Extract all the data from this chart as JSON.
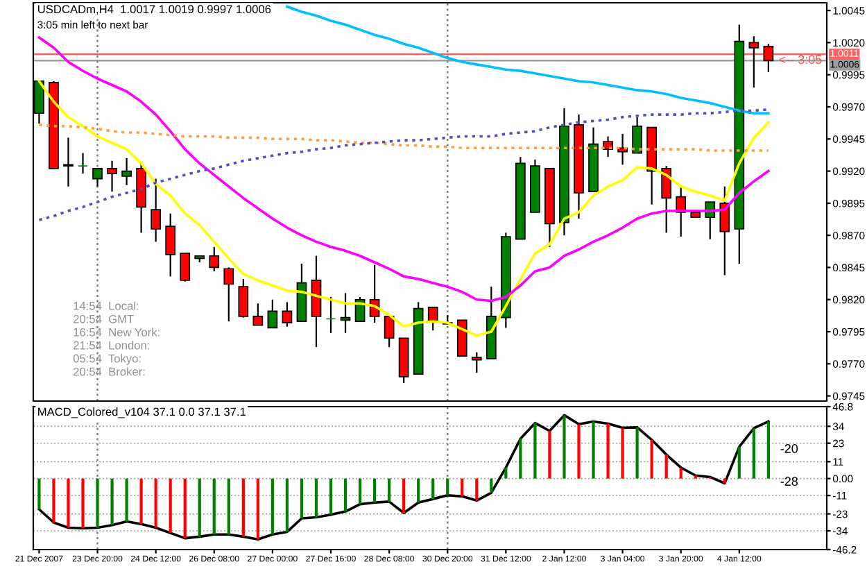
{
  "chart_data": [
    {
      "type": "candlestick",
      "title": "USDCADm,H4  1.0017 1.0019 0.9997 1.0006",
      "categories": [
        "21 Dec 2007",
        null,
        null,
        null,
        "23 Dec 20:00",
        null,
        null,
        null,
        "24 Dec 12:00",
        null,
        null,
        null,
        "26 Dec 08:00",
        null,
        null,
        null,
        "27 Dec 00:00",
        null,
        null,
        null,
        "27 Dec 16:00",
        null,
        null,
        null,
        "28 Dec 08:00",
        null,
        null,
        null,
        "30 Dec 20:00",
        null,
        null,
        null,
        "31 Dec 12:00",
        null,
        null,
        null,
        "2 Jan 12:00",
        null,
        null,
        null,
        "3 Jan 04:00",
        null,
        null,
        null,
        "3 Jan 20:00",
        null,
        null,
        null,
        "4 Jan 12:00",
        null,
        null
      ],
      "ohlc": [
        [
          0.9965,
          0.9991,
          0.9957,
          0.999
        ],
        [
          0.9989,
          0.999,
          0.9922,
          0.9922
        ],
        [
          0.9924,
          0.9946,
          0.9908,
          0.9925
        ],
        [
          0.9924,
          0.9934,
          0.9918,
          0.9924
        ],
        [
          0.9914,
          0.9922,
          0.9908,
          0.9922
        ],
        [
          0.9922,
          0.9928,
          0.9904,
          0.9918
        ],
        [
          0.9916,
          0.993,
          0.9909,
          0.992
        ],
        [
          0.9922,
          0.9926,
          0.9872,
          0.9892
        ],
        [
          0.989,
          0.9914,
          0.9865,
          0.9875
        ],
        [
          0.9877,
          0.9887,
          0.9838,
          0.9855
        ],
        [
          0.9856,
          0.9856,
          0.9834,
          0.9835
        ],
        [
          0.9852,
          0.9854,
          0.9849,
          0.9854
        ],
        [
          0.9854,
          0.9861,
          0.9842,
          0.9845
        ],
        [
          0.9844,
          0.9845,
          0.9803,
          0.9832
        ],
        [
          0.983,
          0.9836,
          0.9806,
          0.9807
        ],
        [
          0.9807,
          0.9817,
          0.98,
          0.98
        ],
        [
          0.9798,
          0.982,
          0.9798,
          0.9811
        ],
        [
          0.9811,
          0.9818,
          0.9799,
          0.9802
        ],
        [
          0.9803,
          0.9848,
          0.9803,
          0.9833
        ],
        [
          0.9835,
          0.9854,
          0.9783,
          0.9807
        ],
        [
          0.9805,
          0.9822,
          0.9794,
          0.9805
        ],
        [
          0.9804,
          0.9825,
          0.9794,
          0.9806
        ],
        [
          0.9803,
          0.9822,
          0.9803,
          0.982
        ],
        [
          0.982,
          0.9847,
          0.9802,
          0.9807
        ],
        [
          0.9807,
          0.9807,
          0.9783,
          0.979
        ],
        [
          0.979,
          0.979,
          0.9755,
          0.976
        ],
        [
          0.9762,
          0.9818,
          0.9762,
          0.9813
        ],
        [
          0.9814,
          0.9814,
          0.9796,
          0.9803
        ],
        [
          0.9801,
          0.9808,
          0.9801,
          0.9802
        ],
        [
          0.9804,
          0.9804,
          0.9776,
          0.9776
        ],
        [
          0.9775,
          0.9779,
          0.9763,
          0.9773
        ],
        [
          0.9774,
          0.983,
          0.9774,
          0.9807
        ],
        [
          0.9806,
          0.9872,
          0.9798,
          0.9869
        ],
        [
          0.9867,
          0.9931,
          0.9867,
          0.9926
        ],
        [
          0.9888,
          0.9929,
          0.9888,
          0.9924
        ],
        [
          0.9922,
          0.9922,
          0.9861,
          0.9879
        ],
        [
          0.988,
          0.9969,
          0.987,
          0.9955
        ],
        [
          0.9956,
          0.9964,
          0.9883,
          0.9903
        ],
        [
          0.9904,
          0.9954,
          0.9904,
          0.9941
        ],
        [
          0.9943,
          0.9947,
          0.9931,
          0.9937
        ],
        [
          0.9938,
          0.9949,
          0.9925,
          0.9935
        ],
        [
          0.9934,
          0.9962,
          0.9934,
          0.9955
        ],
        [
          0.9954,
          0.9954,
          0.9894,
          0.992
        ],
        [
          0.9922,
          0.9924,
          0.9872,
          0.9899
        ],
        [
          0.99,
          0.9909,
          0.9869,
          0.9888
        ],
        [
          0.9888,
          0.9888,
          0.9884,
          0.9884
        ],
        [
          0.9884,
          0.9896,
          0.9867,
          0.9896
        ],
        [
          0.9895,
          0.9908,
          0.9839,
          0.9873
        ],
        [
          0.9875,
          1.0034,
          0.9848,
          1.0021
        ],
        [
          1.002,
          1.0025,
          0.9985,
          1.0016
        ],
        [
          1.0017,
          1.0019,
          0.9997,
          1.0006
        ]
      ],
      "colors": [
        "#008000",
        "#ff0000",
        "#008000",
        "#008000",
        "#008000",
        "#ff0000",
        "#008000",
        "#ff0000",
        "#ff0000",
        "#ff0000",
        "#ff0000",
        "#008000",
        "#ff0000",
        "#ff0000",
        "#ff0000",
        "#ff0000",
        "#008000",
        "#ff0000",
        "#008000",
        "#ff0000",
        "#008000",
        "#008000",
        "#008000",
        "#ff0000",
        "#ff0000",
        "#ff0000",
        "#008000",
        "#ff0000",
        "#008000",
        "#ff0000",
        "#ff0000",
        "#008000",
        "#008000",
        "#008000",
        "#008000",
        "#ff0000",
        "#008000",
        "#ff0000",
        "#008000",
        "#ff0000",
        "#ff0000",
        "#008000",
        "#ff0000",
        "#ff0000",
        "#ff0000",
        "#ff0000",
        "#008000",
        "#ff0000",
        "#008000",
        "#ff0000",
        "#ff0000"
      ],
      "series": [
        {
          "type": "line",
          "color": "#ffff00",
          "line_style": "solid",
          "values": [
            0.999,
            0.9974,
            0.9962,
            0.9955,
            0.9947,
            0.9942,
            0.9937,
            0.9926,
            0.991,
            0.9901,
            0.9887,
            0.9878,
            0.9865,
            0.9852,
            0.984,
            0.9835,
            0.9831,
            0.9827,
            0.9826,
            0.9823,
            0.982,
            0.9817,
            0.9817,
            0.9815,
            0.9808,
            0.9799,
            0.9802,
            0.9803,
            0.9802,
            0.9797,
            0.9792,
            0.9795,
            0.9815,
            0.9836,
            0.9856,
            0.9863,
            0.9883,
            0.9888,
            0.9901,
            0.9908,
            0.9913,
            0.9923,
            0.9922,
            0.9917,
            0.9908,
            0.9904,
            0.9901,
            0.9897,
            0.9926,
            0.9946,
            0.9958
          ]
        },
        {
          "type": "line",
          "color": "#ff00ff",
          "line_style": "solid",
          "values": [
            1.0024,
            1.0016,
            1.0005,
            0.9998,
            0.9992,
            0.9987,
            0.9982,
            0.9974,
            0.9964,
            0.9951,
            0.9937,
            0.9926,
            0.9917,
            0.9908,
            0.9899,
            0.9891,
            0.9883,
            0.9876,
            0.987,
            0.9865,
            0.9861,
            0.9858,
            0.9854,
            0.9849,
            0.9844,
            0.9838,
            0.9836,
            0.9833,
            0.983,
            0.9826,
            0.982,
            0.9819,
            0.9822,
            0.9831,
            0.9842,
            0.9845,
            0.9854,
            0.9859,
            0.9865,
            0.987,
            0.9876,
            0.9883,
            0.9887,
            0.9889,
            0.9889,
            0.9889,
            0.9889,
            0.989,
            0.9903,
            0.9912,
            0.992
          ]
        },
        {
          "type": "line",
          "color": "#00bfff",
          "line_style": "solid",
          "values": [
            null,
            null,
            null,
            null,
            null,
            null,
            null,
            null,
            null,
            null,
            null,
            null,
            null,
            null,
            null,
            null,
            null,
            1.0048,
            1.0044,
            1.0041,
            1.0037,
            1.0034,
            1.003,
            1.0026,
            1.0023,
            1.0019,
            1.0016,
            1.0012,
            1.0008,
            1.0005,
            1.0003,
            1.0001,
            0.9999,
            0.9998,
            0.9996,
            0.9994,
            0.9992,
            0.999,
            0.9989,
            0.9987,
            0.9985,
            0.9983,
            0.9982,
            0.998,
            0.9977,
            0.9975,
            0.9973,
            0.997,
            0.9967,
            0.9965,
            0.9965
          ]
        },
        {
          "type": "line",
          "color": "#ffa040",
          "line_style": "dotted",
          "values": [
            0.9956,
            0.9955,
            0.9955,
            0.9954,
            0.9953,
            0.9951,
            0.995,
            0.995,
            0.9949,
            0.9948,
            0.9947,
            0.9947,
            0.9947,
            0.9946,
            0.9946,
            0.9946,
            0.9945,
            0.9945,
            0.9945,
            0.9944,
            0.9944,
            0.9943,
            0.9942,
            0.9942,
            0.9941,
            0.994,
            0.994,
            0.9939,
            0.9939,
            0.9938,
            0.9938,
            0.9938,
            0.9938,
            0.9938,
            0.9938,
            0.9938,
            0.9938,
            0.9938,
            0.9938,
            0.9938,
            0.9938,
            0.9937,
            0.9937,
            0.9937,
            0.9937,
            0.9937,
            0.9936,
            0.9936,
            0.9936,
            0.9936,
            0.9936
          ]
        },
        {
          "type": "line",
          "color": "#5050c0",
          "line_style": "dotted",
          "values": [
            0.9882,
            0.9885,
            0.9889,
            0.9892,
            0.9896,
            0.99,
            0.9903,
            0.9906,
            0.9911,
            0.9914,
            0.9917,
            0.992,
            0.9922,
            0.9925,
            0.9928,
            0.993,
            0.9932,
            0.9934,
            0.9935,
            0.9937,
            0.9938,
            0.994,
            0.9941,
            0.9942,
            0.9943,
            0.9944,
            0.9944,
            0.9945,
            0.9946,
            0.9947,
            0.9947,
            0.9947,
            0.9949,
            0.995,
            0.9951,
            0.9954,
            0.9956,
            0.9958,
            0.9959,
            0.996,
            0.9962,
            0.9963,
            0.9964,
            0.9964,
            0.9964,
            0.9965,
            0.9965,
            0.9966,
            0.9967,
            0.9967,
            0.9968
          ]
        }
      ],
      "ylim": [
        0.9741,
        1.0051
      ],
      "yticks": [
        1.0045,
        {
          "value": 1.002,
          "label": "1.0020"
        },
        0.9995,
        {
          "value": 0.997,
          "label": "0.9970"
        },
        0.9945,
        {
          "value": 0.992,
          "label": "0.9920"
        },
        0.9895,
        {
          "value": 0.987,
          "label": "0.9870"
        },
        0.9845,
        {
          "value": 0.982,
          "label": "0.9820"
        },
        0.9795,
        {
          "value": 0.977,
          "label": "0.9770"
        },
        0.9745
      ],
      "ref_lines": [
        {
          "axis": "y",
          "value": 1.0011,
          "label": "1.0011",
          "color": "#ff6060"
        },
        {
          "axis": "y",
          "value": 1.0006,
          "label": "1.0006",
          "color": "#a0a0a0"
        },
        {
          "axis": "x",
          "value": "23 Dec 20:00",
          "color": "#808080",
          "line_style": "dotted"
        },
        {
          "axis": "x",
          "value": "30 Dec 20:00",
          "color": "#808080",
          "line_style": "dotted"
        }
      ],
      "annotations": [
        "3:05 min left to next bar",
        "14:54  Local:",
        "20:54  GMT",
        "16:54  New York:",
        "21:54  London:",
        "05:54  Tokyo:",
        "20:54  Broker:",
        {
          "text": "<-- 3:05",
          "y": 1.0006
        }
      ],
      "tick_labels": "y"
    },
    {
      "type": "bar",
      "title": "MACD_Colored_v104 37.1 0.0 37.1 37.1",
      "categories": [
        "21 Dec 2007",
        null,
        null,
        null,
        "23 Dec 20:00",
        null,
        null,
        null,
        "24 Dec 12:00",
        null,
        null,
        null,
        "26 Dec 08:00",
        null,
        null,
        null,
        "27 Dec 00:00",
        null,
        null,
        null,
        "27 Dec 16:00",
        null,
        null,
        null,
        "28 Dec 08:00",
        null,
        null,
        null,
        "30 Dec 20:00",
        null,
        null,
        null,
        "31 Dec 12:00",
        null,
        null,
        null,
        "2 Jan 12:00",
        null,
        null,
        null,
        "3 Jan 04:00",
        null,
        null,
        null,
        "3 Jan 20:00",
        null,
        null,
        null,
        "4 Jan 12:00",
        null,
        null
      ],
      "series": [
        {
          "type": "bar",
          "values": [
            -20,
            -28.6,
            -32,
            -32.3,
            -32,
            -30.3,
            -27.9,
            -29.6,
            -32,
            -35.4,
            -38.8,
            -37.8,
            -36.4,
            -36.4,
            -37.8,
            -39.5,
            -36.4,
            -34.7,
            -25.9,
            -25.2,
            -23.5,
            -21.4,
            -16.7,
            -15.6,
            -15,
            -22.4,
            -15.6,
            -13.3,
            -10.9,
            -11.6,
            -14.3,
            -9.2,
            7.1,
            25.9,
            36.1,
            31,
            41.2,
            35.4,
            37.1,
            35.7,
            33,
            33.3,
            25.2,
            15.6,
            7.1,
            2,
            1,
            -3.1,
            20.7,
            32.7,
            37.1
          ],
          "colors": [
            "#008000",
            "#ff0000",
            "#ff0000",
            "#ff0000",
            "#008000",
            "#008000",
            "#008000",
            "#ff0000",
            "#ff0000",
            "#ff0000",
            "#ff0000",
            "#008000",
            "#008000",
            "#008000",
            "#ff0000",
            "#ff0000",
            "#008000",
            "#008000",
            "#008000",
            "#008000",
            "#008000",
            "#008000",
            "#008000",
            "#008000",
            "#008000",
            "#ff0000",
            "#008000",
            "#008000",
            "#008000",
            "#ff0000",
            "#ff0000",
            "#008000",
            "#008000",
            "#008000",
            "#008000",
            "#ff0000",
            "#008000",
            "#ff0000",
            "#008000",
            "#ff0000",
            "#ff0000",
            "#008000",
            "#ff0000",
            "#ff0000",
            "#ff0000",
            "#ff0000",
            "#ff0000",
            "#ff0000",
            "#008000",
            "#008000",
            "#008000"
          ]
        },
        {
          "type": "line",
          "color": "#000000",
          "values": [
            -20,
            -28.6,
            -32,
            -32.3,
            -32,
            -30.3,
            -27.9,
            -29.6,
            -32,
            -35.4,
            -38.8,
            -37.8,
            -36.4,
            -36.4,
            -37.8,
            -39.5,
            -36.4,
            -34.7,
            -25.9,
            -25.2,
            -23.5,
            -21.4,
            -16.7,
            -15.6,
            -15,
            -22.4,
            -15.6,
            -13.3,
            -10.9,
            -11.6,
            -14.3,
            -9.2,
            7.1,
            25.9,
            36.1,
            31,
            41.2,
            35.4,
            37.1,
            35.7,
            33,
            33.3,
            25.2,
            15.6,
            7.1,
            2,
            1,
            -3.1,
            20.7,
            32.7,
            37.1
          ]
        }
      ],
      "ylim": [
        -46.2,
        46.8
      ],
      "yticks": [
        46.8,
        34,
        23,
        11,
        {
          "value": 0,
          "label": "0.00"
        },
        -11,
        -23,
        -34,
        -46.2
      ],
      "grid": "y",
      "ref_lines": [
        {
          "axis": "x",
          "value": "23 Dec 20:00",
          "color": "#808080",
          "line_style": "dotted"
        },
        {
          "axis": "x",
          "value": "30 Dec 20:00",
          "color": "#808080",
          "line_style": "dotted"
        }
      ],
      "annotations": [
        "-20",
        "-28"
      ]
    }
  ]
}
